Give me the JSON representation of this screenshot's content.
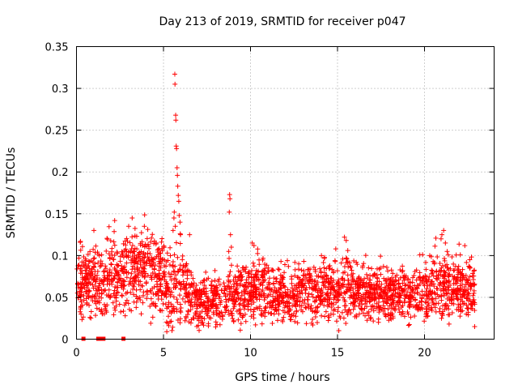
{
  "chart_data": {
    "type": "scatter",
    "title": "Day 213 of 2019, SRMTID for receiver p047",
    "xlabel": "GPS time / hours",
    "ylabel": "SRMTID / TECUs",
    "xlim": [
      0,
      24
    ],
    "ylim": [
      0,
      0.35
    ],
    "xticks": [
      0,
      5,
      10,
      15,
      20
    ],
    "yticks": [
      0,
      0.05,
      0.1,
      0.15,
      0.2,
      0.25,
      0.3,
      0.35
    ],
    "grid": true,
    "series": [
      {
        "name": "SRMTID",
        "color": "#ff0000",
        "marker": "plus",
        "profile": [
          [
            0.0,
            0.072,
            0.02
          ],
          [
            0.5,
            0.068,
            0.02
          ],
          [
            1.0,
            0.074,
            0.022
          ],
          [
            1.5,
            0.066,
            0.02
          ],
          [
            2.0,
            0.08,
            0.024
          ],
          [
            2.5,
            0.075,
            0.022
          ],
          [
            3.0,
            0.085,
            0.026
          ],
          [
            3.5,
            0.082,
            0.024
          ],
          [
            4.0,
            0.088,
            0.024
          ],
          [
            4.5,
            0.074,
            0.022
          ],
          [
            5.0,
            0.07,
            0.022
          ],
          [
            5.5,
            0.062,
            0.024
          ],
          [
            6.0,
            0.07,
            0.024
          ],
          [
            6.5,
            0.052,
            0.016
          ],
          [
            7.0,
            0.045,
            0.014
          ],
          [
            7.5,
            0.044,
            0.014
          ],
          [
            8.0,
            0.045,
            0.015
          ],
          [
            8.5,
            0.05,
            0.016
          ],
          [
            9.0,
            0.052,
            0.017
          ],
          [
            9.5,
            0.055,
            0.016
          ],
          [
            10.0,
            0.058,
            0.018
          ],
          [
            10.5,
            0.062,
            0.02
          ],
          [
            11.0,
            0.056,
            0.018
          ],
          [
            11.5,
            0.052,
            0.016
          ],
          [
            12.0,
            0.05,
            0.016
          ],
          [
            13.0,
            0.055,
            0.017
          ],
          [
            14.0,
            0.058,
            0.018
          ],
          [
            15.0,
            0.06,
            0.018
          ],
          [
            15.5,
            0.065,
            0.02
          ],
          [
            16.0,
            0.058,
            0.018
          ],
          [
            17.0,
            0.055,
            0.017
          ],
          [
            18.0,
            0.057,
            0.017
          ],
          [
            19.0,
            0.052,
            0.016
          ],
          [
            19.5,
            0.05,
            0.016
          ],
          [
            20.0,
            0.06,
            0.018
          ],
          [
            21.0,
            0.065,
            0.02
          ],
          [
            21.5,
            0.06,
            0.018
          ],
          [
            22.0,
            0.062,
            0.018
          ],
          [
            22.9,
            0.058,
            0.017
          ]
        ],
        "spikes": [
          [
            5.65,
            0.317
          ],
          [
            5.66,
            0.305
          ],
          [
            5.7,
            0.268
          ],
          [
            5.71,
            0.262
          ],
          [
            5.73,
            0.231
          ],
          [
            5.75,
            0.228
          ],
          [
            5.78,
            0.205
          ],
          [
            5.8,
            0.196
          ],
          [
            5.82,
            0.183
          ],
          [
            5.85,
            0.172
          ],
          [
            5.88,
            0.165
          ],
          [
            5.62,
            0.152
          ],
          [
            5.9,
            0.148
          ],
          [
            5.6,
            0.145
          ],
          [
            5.95,
            0.14
          ],
          [
            5.68,
            0.135
          ],
          [
            5.55,
            0.13
          ],
          [
            5.98,
            0.125
          ],
          [
            8.8,
            0.173
          ],
          [
            8.82,
            0.168
          ],
          [
            8.78,
            0.152
          ],
          [
            8.85,
            0.125
          ],
          [
            8.9,
            0.11
          ],
          [
            8.75,
            0.105
          ],
          [
            3.2,
            0.145
          ],
          [
            3.0,
            0.135
          ],
          [
            1.0,
            0.13
          ],
          [
            3.9,
            0.135
          ],
          [
            6.5,
            0.125
          ],
          [
            10.1,
            0.115
          ],
          [
            10.2,
            0.112
          ],
          [
            15.4,
            0.122
          ],
          [
            15.5,
            0.118
          ],
          [
            14.9,
            0.108
          ],
          [
            21.1,
            0.13
          ],
          [
            21.0,
            0.125
          ],
          [
            20.95,
            0.12
          ],
          [
            21.2,
            0.115
          ],
          [
            20.3,
            0.1
          ],
          [
            21.3,
            0.105
          ],
          [
            22.6,
            0.095
          ]
        ]
      }
    ],
    "gap_markers_x": [
      0.4,
      1.25,
      1.35,
      1.45,
      1.55,
      2.7
    ]
  }
}
